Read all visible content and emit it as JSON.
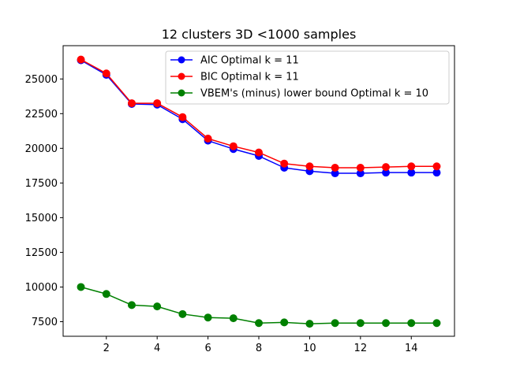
{
  "chart_data": {
    "type": "line",
    "title": "12 clusters 3D  <1000 samples",
    "xlabel": "",
    "ylabel": "",
    "xlim": [
      0.3,
      15.7
    ],
    "ylim": [
      6450,
      27400
    ],
    "xticks": [
      2,
      4,
      6,
      8,
      10,
      12,
      14
    ],
    "yticks": [
      7500,
      10000,
      12500,
      15000,
      17500,
      20000,
      22500,
      25000
    ],
    "grid": false,
    "legend_position": "top-right",
    "x": [
      1,
      2,
      3,
      4,
      5,
      6,
      7,
      8,
      9,
      10,
      11,
      12,
      13,
      14,
      15
    ],
    "series": [
      {
        "name": "AIC Optimal k = 11",
        "color": "#0000ff",
        "values": [
          26350,
          25300,
          23200,
          23150,
          22100,
          20550,
          19950,
          19450,
          18600,
          18350,
          18200,
          18200,
          18250,
          18250,
          18250
        ]
      },
      {
        "name": "BIC Optimal k = 11",
        "color": "#ff0000",
        "values": [
          26400,
          25400,
          23250,
          23250,
          22250,
          20700,
          20150,
          19700,
          18900,
          18700,
          18600,
          18600,
          18650,
          18700,
          18700
        ]
      },
      {
        "name": "VBEM's (minus) lower bound Optimal k = 10",
        "color": "#008000",
        "values": [
          10000,
          9500,
          8700,
          8600,
          8050,
          7800,
          7750,
          7400,
          7450,
          7350,
          7400,
          7400,
          7400,
          7400,
          7400
        ]
      }
    ]
  }
}
